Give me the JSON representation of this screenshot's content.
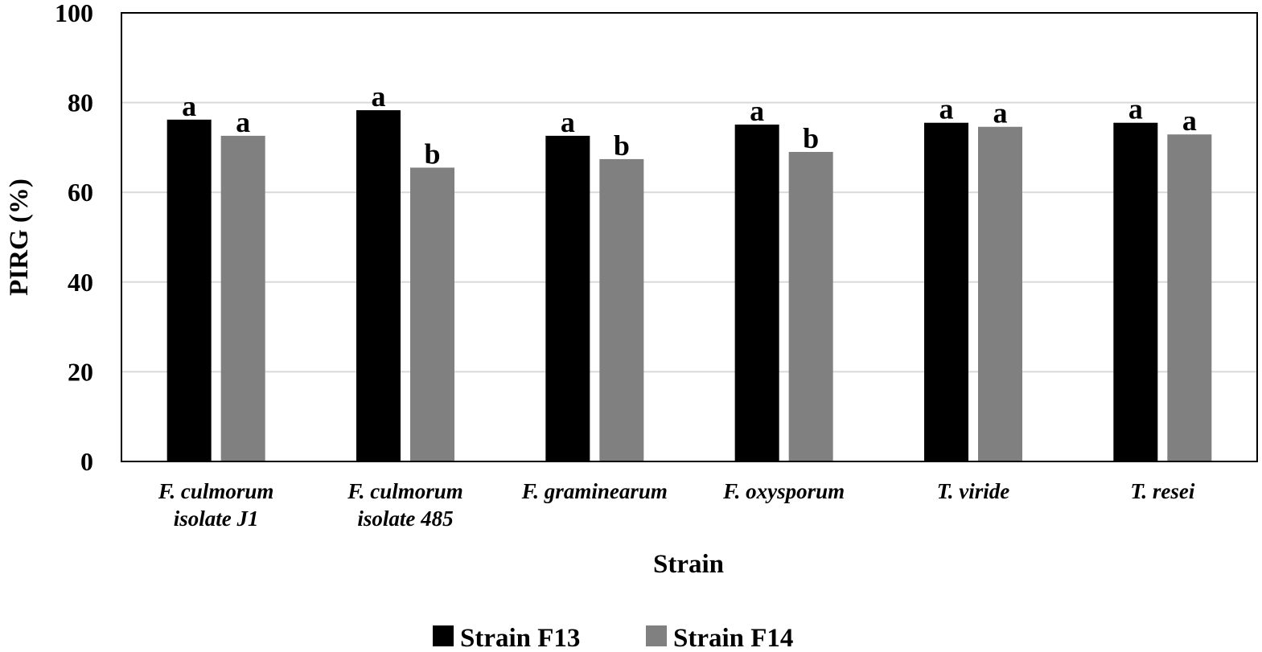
{
  "chart_data": {
    "type": "bar",
    "categories": [
      [
        "F. culmorum",
        "isolate J1"
      ],
      [
        "F. culmorum",
        "isolate 485"
      ],
      [
        "F. graminearum"
      ],
      [
        "F. oxysporum"
      ],
      [
        "T. viride"
      ],
      [
        "T. resei"
      ]
    ],
    "series": [
      {
        "name": "Strain F13",
        "color": "#000000",
        "values": [
          76.2,
          78.3,
          72.6,
          75.1,
          75.5,
          75.5
        ],
        "labels": [
          "a",
          "a",
          "a",
          "a",
          "a",
          "a"
        ]
      },
      {
        "name": "Strain F14",
        "color": "#808080",
        "values": [
          72.6,
          65.5,
          67.4,
          69.0,
          74.6,
          72.9
        ],
        "labels": [
          "a",
          "b",
          "b",
          "b",
          "a",
          "a"
        ]
      }
    ],
    "xlabel": "Strain",
    "ylabel": "PIRG (%)",
    "ylim": [
      0,
      100
    ],
    "yticks": [
      0,
      20,
      40,
      60,
      80,
      100
    ],
    "grid": true,
    "legend_position": "bottom"
  }
}
